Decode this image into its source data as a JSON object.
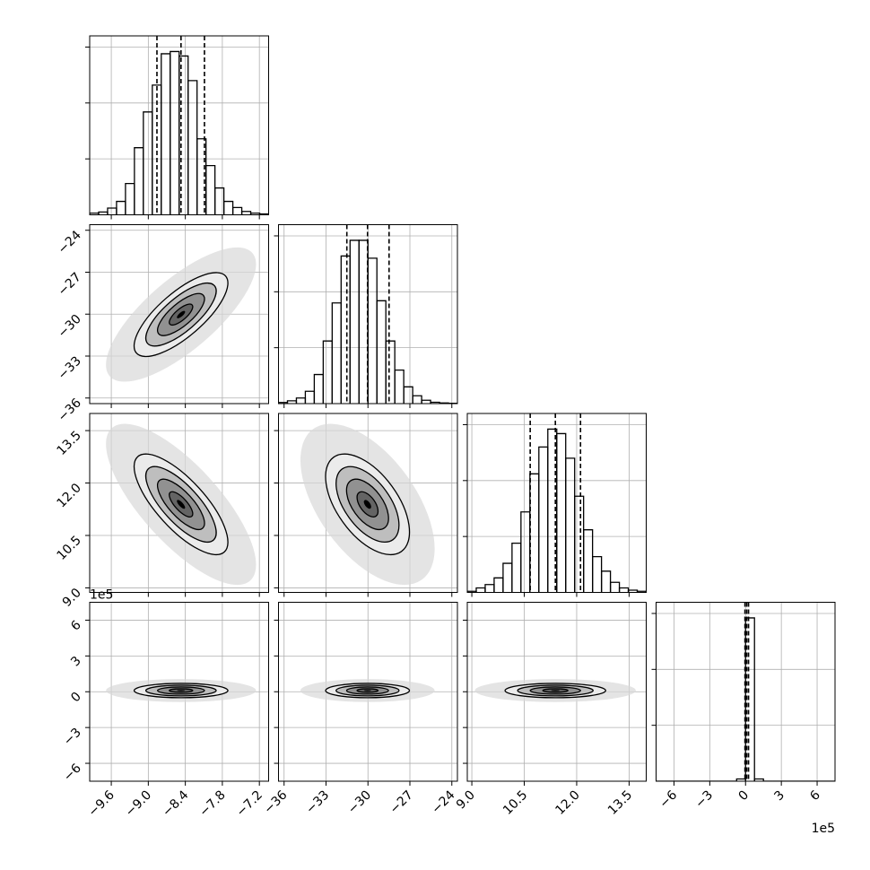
{
  "chart_data": {
    "type": "corner",
    "grid": true,
    "color": "#000000",
    "hist_ylim": [
      0,
      1600
    ],
    "hist_yticks": [
      500,
      1000,
      1500
    ],
    "contour_levels": [
      0.5,
      1,
      1.5,
      2
    ],
    "correlations": [
      [
        1,
        0.75,
        -0.75,
        0
      ],
      [
        0.75,
        1,
        -0.55,
        0
      ],
      [
        -0.75,
        -0.55,
        1,
        0
      ],
      [
        0,
        0,
        0,
        1
      ]
    ],
    "variables": [
      {
        "lim": [
          -9.95,
          -7.05
        ],
        "ticks": [
          {
            "value": -9.6,
            "label": "−9.6"
          },
          {
            "value": -9.0,
            "label": "−9.0"
          },
          {
            "value": -8.4,
            "label": "−8.4"
          },
          {
            "value": -7.8,
            "label": "−7.8"
          },
          {
            "value": -7.2,
            "label": "−7.2"
          }
        ],
        "mean": -8.47,
        "sigma": 0.38,
        "quantiles": [
          -8.86,
          -8.47,
          -8.09
        ],
        "hist": {
          "bins": [
            -9.95,
            -9.805,
            -9.66,
            -9.515,
            -9.37,
            -9.225,
            -9.08,
            -8.935,
            -8.79,
            -8.645,
            -8.5,
            -8.355,
            -8.21,
            -8.065,
            -7.92,
            -7.775,
            -7.63,
            -7.485,
            -7.34,
            -7.195,
            -7.05
          ],
          "counts": [
            15,
            25,
            60,
            120,
            280,
            600,
            920,
            1160,
            1440,
            1460,
            1420,
            1200,
            680,
            440,
            240,
            120,
            65,
            30,
            15,
            8
          ]
        }
      },
      {
        "lim": [
          -36.4,
          -23.6
        ],
        "ticks": [
          {
            "value": -36,
            "label": "−36"
          },
          {
            "value": -33,
            "label": "−33"
          },
          {
            "value": -30,
            "label": "−30"
          },
          {
            "value": -27,
            "label": "−27"
          },
          {
            "value": -24,
            "label": "−24"
          }
        ],
        "mean": -30.03,
        "sigma": 1.5,
        "quantiles": [
          -31.51,
          -30.03,
          -28.49
        ],
        "hist": {
          "bins": [
            -36.4,
            -35.76,
            -35.12,
            -34.48,
            -33.84,
            -33.2,
            -32.56,
            -31.92,
            -31.28,
            -30.64,
            -30.0,
            -29.36,
            -28.72,
            -28.08,
            -27.44,
            -26.8,
            -26.16,
            -25.52,
            -24.88,
            -24.24,
            -23.6
          ],
          "counts": [
            10,
            25,
            50,
            110,
            260,
            560,
            900,
            1320,
            1460,
            1460,
            1300,
            920,
            560,
            300,
            150,
            70,
            30,
            12,
            6,
            3
          ]
        }
      },
      {
        "lim": [
          8.87,
          13.99
        ],
        "ticks": [
          {
            "value": 9.0,
            "label": "9.0"
          },
          10.5,
          {
            "value": 12.0,
            "label": "12.0"
          },
          13.5
        ],
        "mean": 11.39,
        "sigma": 0.72,
        "quantiles": [
          10.67,
          11.39,
          12.11
        ],
        "hist": {
          "bins": [
            8.87,
            9.126,
            9.382,
            9.638,
            9.894,
            10.15,
            10.406,
            10.662,
            10.918,
            11.174,
            11.43,
            11.686,
            11.942,
            12.198,
            12.454,
            12.71,
            12.966,
            13.222,
            13.478,
            13.734,
            13.99
          ],
          "counts": [
            10,
            40,
            70,
            130,
            260,
            440,
            720,
            1060,
            1300,
            1460,
            1420,
            1200,
            860,
            560,
            320,
            190,
            90,
            40,
            20,
            10
          ]
        }
      },
      {
        "lim": [
          -7.5,
          7.5
        ],
        "ticks": [
          {
            "value": -6,
            "label": "−6"
          },
          {
            "value": -3,
            "label": "−3"
          },
          0,
          3,
          6
        ],
        "offset": "1e5",
        "mean": 0.1,
        "sigma": 0.3,
        "quantiles": [
          -0.05,
          0.1,
          0.25
        ],
        "hist": {
          "bins": [
            -7.5,
            -6.75,
            -6,
            -5.25,
            -4.5,
            -3.75,
            -3,
            -2.25,
            -1.5,
            -0.75,
            0,
            0.75,
            1.5,
            2.25,
            3,
            3.75,
            4.5,
            5.25,
            6,
            6.75,
            7.5
          ],
          "counts": [
            0,
            0,
            0,
            0,
            0,
            0,
            0,
            0,
            0,
            20,
            1460,
            20,
            0,
            0,
            0,
            0,
            0,
            0,
            0,
            0
          ]
        }
      }
    ]
  }
}
